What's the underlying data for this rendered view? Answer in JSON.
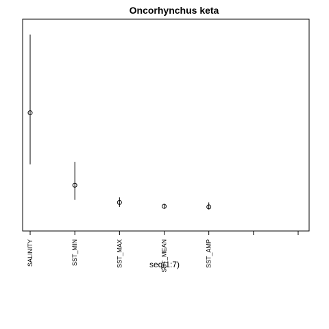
{
  "chart_data": {
    "type": "scatter",
    "title": "Oncorhynchus keta",
    "xlabel": "seq(1:7)",
    "ylabel": "",
    "xlim": [
      1,
      7
    ],
    "ylim": [
      0,
      1
    ],
    "grid": false,
    "y_axis_shown": false,
    "categories": [
      "SALINITY",
      "SST_MIN",
      "SST_MAX",
      "SST_MEAN",
      "SST_AMP",
      "",
      ""
    ],
    "points": [
      {
        "x": 1,
        "label": "SALINITY",
        "y": 0.563,
        "lo": 0.299,
        "hi": 0.963
      },
      {
        "x": 2,
        "label": "SST_MIN",
        "y": 0.192,
        "lo": 0.117,
        "hi": 0.312
      },
      {
        "x": 3,
        "label": "SST_MAX",
        "y": 0.104,
        "lo": 0.081,
        "hi": 0.13
      },
      {
        "x": 4,
        "label": "SST_MEAN",
        "y": 0.084,
        "lo": 0.071,
        "hi": 0.097
      },
      {
        "x": 5,
        "label": "SST_AMP",
        "y": 0.081,
        "lo": 0.068,
        "hi": 0.104
      }
    ]
  }
}
